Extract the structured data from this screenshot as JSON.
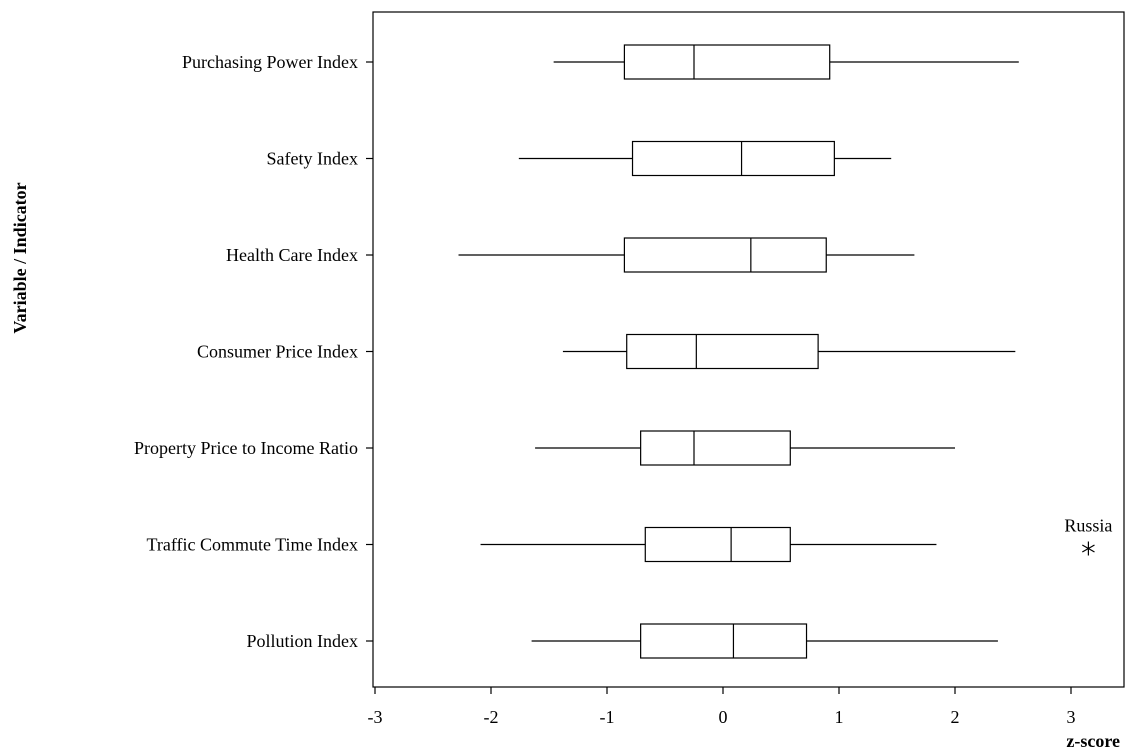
{
  "chart_data": {
    "type": "boxplot",
    "orientation": "horizontal",
    "title": "",
    "xlabel": "z-score",
    "ylabel": "Variable / Indicator",
    "xlim": [
      -3.1,
      3.55
    ],
    "xticks": [
      -3,
      -2,
      -1,
      0,
      1,
      2,
      3
    ],
    "grid": false,
    "categories": [
      "Purchasing Power Index",
      "Safety Index",
      "Health Care Index",
      "Consumer Price Index",
      "Property Price to Income Ratio",
      "Traffic Commute Time Index",
      "Pollution Index"
    ],
    "boxes": [
      {
        "category": "Purchasing Power Index",
        "whisker_low": -1.46,
        "q1": -0.85,
        "median": -0.25,
        "q3": 0.92,
        "whisker_high": 2.55
      },
      {
        "category": "Safety Index",
        "whisker_low": -1.76,
        "q1": -0.78,
        "median": 0.16,
        "q3": 0.96,
        "whisker_high": 1.45
      },
      {
        "category": "Health Care Index",
        "whisker_low": -2.28,
        "q1": -0.85,
        "median": 0.24,
        "q3": 0.89,
        "whisker_high": 1.65
      },
      {
        "category": "Consumer Price Index",
        "whisker_low": -1.38,
        "q1": -0.83,
        "median": -0.23,
        "q3": 0.82,
        "whisker_high": 2.52
      },
      {
        "category": "Property Price to Income Ratio",
        "whisker_low": -1.62,
        "q1": -0.71,
        "median": -0.25,
        "q3": 0.58,
        "whisker_high": 2.0
      },
      {
        "category": "Traffic Commute Time Index",
        "whisker_low": -2.09,
        "q1": -0.67,
        "median": 0.07,
        "q3": 0.58,
        "whisker_high": 1.84
      },
      {
        "category": "Pollution Index",
        "whisker_low": -1.65,
        "q1": -0.71,
        "median": 0.09,
        "q3": 0.72,
        "whisker_high": 2.37
      }
    ],
    "outliers": [
      {
        "category": "Traffic Commute Time Index",
        "value": 3.15,
        "label": "Russia"
      }
    ]
  }
}
